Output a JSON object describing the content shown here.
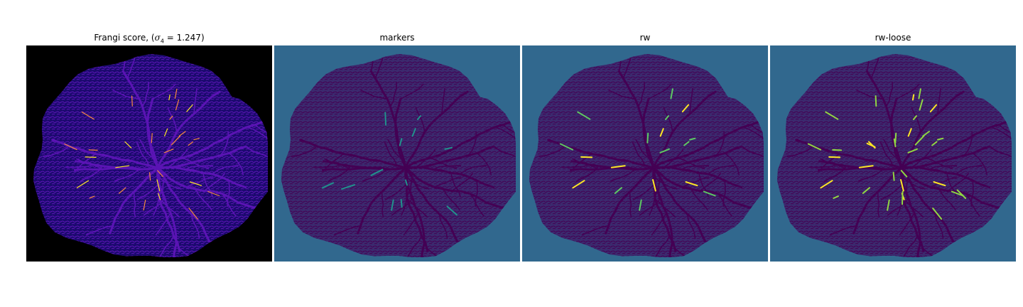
{
  "figure": {
    "panels": [
      {
        "id": "frangi",
        "title_prefix": "Frangi score, (",
        "title_math": "σ",
        "title_sub": "4",
        "title_suffix": " = 1.247)",
        "colormap": "plasma",
        "colors": {
          "background": "#000000",
          "tissue": "#1b0a6e",
          "vessel": "#5a14b4",
          "highlight": "#f58c3c",
          "peak": "#fde725"
        }
      },
      {
        "id": "markers",
        "title": "markers",
        "colormap": "viridis",
        "colors": {
          "background": "#31688e",
          "tissue": "#3b2a6e",
          "vessel": "#440154",
          "highlight": "#21918c"
        }
      },
      {
        "id": "rw",
        "title": "rw",
        "colormap": "viridis",
        "colors": {
          "background": "#31688e",
          "tissue": "#3b2a6e",
          "vessel": "#440154",
          "highlight": "#5ec962",
          "peak": "#fde725"
        }
      },
      {
        "id": "rw-loose",
        "title": "rw-loose",
        "colormap": "viridis",
        "colors": {
          "background": "#31688e",
          "tissue": "#3b2a6e",
          "vessel": "#440154",
          "highlight": "#90d743",
          "peak": "#fde725"
        }
      }
    ]
  }
}
